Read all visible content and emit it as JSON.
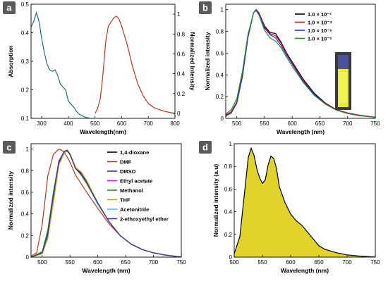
{
  "chart_data": [
    {
      "panel_label": "a",
      "type": "line",
      "xlabel": "Wavelength(nm)",
      "ylabel": "Absorption",
      "ylabel_right": "Normalized Intensity",
      "xlim": [
        260,
        800
      ],
      "ylim": [
        0.1,
        0.5
      ],
      "ylim_right": [
        -0.05,
        1.1
      ],
      "xticks": [
        300,
        400,
        500,
        600,
        700,
        800
      ],
      "yticks": [
        0.1,
        0.2,
        0.3,
        0.4,
        0.5
      ],
      "yticks_right": [
        0.0,
        0.2,
        0.4,
        0.6,
        0.8,
        1.0
      ],
      "series": [
        {
          "axis": "left",
          "color": "#1f6e86",
          "x": [
            260,
            270,
            280,
            290,
            300,
            310,
            320,
            330,
            340,
            350,
            360,
            370,
            380,
            390,
            400,
            410,
            420,
            430,
            440,
            450,
            460,
            470,
            480
          ],
          "y": [
            0.42,
            0.44,
            0.47,
            0.44,
            0.38,
            0.33,
            0.29,
            0.27,
            0.265,
            0.27,
            0.25,
            0.22,
            0.21,
            0.2,
            0.16,
            0.15,
            0.14,
            0.125,
            0.115,
            0.11,
            0.105,
            0.103,
            0.1
          ]
        },
        {
          "axis": "right",
          "color": "#b23a23",
          "x": [
            500,
            510,
            520,
            530,
            540,
            550,
            560,
            570,
            580,
            590,
            600,
            620,
            640,
            660,
            680,
            700,
            720,
            740,
            760,
            780,
            800
          ],
          "y": [
            0.0,
            0.05,
            0.15,
            0.4,
            0.72,
            0.88,
            0.92,
            0.96,
            0.98,
            0.95,
            0.88,
            0.7,
            0.48,
            0.3,
            0.18,
            0.1,
            0.06,
            0.04,
            0.02,
            0.01,
            0.0
          ]
        }
      ]
    },
    {
      "panel_label": "b",
      "type": "line",
      "xlabel": "Wavelength (nm)",
      "ylabel": "Normalized intensity",
      "xlim": [
        480,
        750
      ],
      "ylim": [
        0,
        1.05
      ],
      "xticks": [
        500,
        550,
        600,
        650,
        700,
        750
      ],
      "yticks": [
        0.0,
        0.2,
        0.4,
        0.6,
        0.8,
        1.0
      ],
      "legend": "top-right",
      "series": [
        {
          "name": "1.0 × 10⁻³",
          "color": "#000000",
          "x": [
            480,
            490,
            500,
            510,
            520,
            530,
            535,
            540,
            550,
            560,
            570,
            580,
            590,
            600,
            620,
            640,
            660,
            680,
            700,
            720,
            750
          ],
          "y": [
            0.03,
            0.06,
            0.15,
            0.4,
            0.75,
            0.97,
            1.0,
            0.97,
            0.85,
            0.79,
            0.78,
            0.7,
            0.6,
            0.52,
            0.36,
            0.23,
            0.14,
            0.08,
            0.05,
            0.03,
            0.01
          ]
        },
        {
          "name": "1.0 × 10⁻⁴",
          "color": "#e0001b",
          "x": [
            480,
            490,
            500,
            510,
            520,
            530,
            535,
            540,
            550,
            560,
            570,
            580,
            590,
            600,
            620,
            640,
            660,
            680,
            700,
            720,
            750
          ],
          "y": [
            0.03,
            0.06,
            0.15,
            0.4,
            0.75,
            0.97,
            1.0,
            0.97,
            0.84,
            0.78,
            0.76,
            0.69,
            0.59,
            0.51,
            0.35,
            0.22,
            0.135,
            0.08,
            0.05,
            0.03,
            0.01
          ]
        },
        {
          "name": "1.0 × 10⁻⁵",
          "color": "#1d2fd0",
          "x": [
            480,
            490,
            500,
            510,
            520,
            530,
            535,
            540,
            550,
            560,
            570,
            580,
            590,
            600,
            620,
            640,
            660,
            680,
            700,
            720,
            750
          ],
          "y": [
            0.02,
            0.05,
            0.14,
            0.38,
            0.74,
            0.97,
            1.0,
            0.96,
            0.83,
            0.77,
            0.74,
            0.67,
            0.58,
            0.5,
            0.34,
            0.22,
            0.13,
            0.075,
            0.045,
            0.025,
            0.01
          ]
        },
        {
          "name": "1.0 × 10⁻⁶",
          "color": "#2a8a2a",
          "x": [
            480,
            490,
            500,
            510,
            520,
            530,
            535,
            540,
            550,
            560,
            570,
            580,
            590,
            600,
            620,
            640,
            660,
            680,
            700,
            720,
            750
          ],
          "y": [
            0.04,
            0.08,
            0.18,
            0.43,
            0.77,
            0.97,
            0.99,
            0.95,
            0.81,
            0.74,
            0.71,
            0.65,
            0.56,
            0.48,
            0.33,
            0.21,
            0.13,
            0.075,
            0.045,
            0.025,
            0.01
          ]
        }
      ]
    },
    {
      "panel_label": "c",
      "type": "line",
      "xlabel": "Wavelength (nm)",
      "ylabel": "Normalized intensity",
      "xlim": [
        480,
        750
      ],
      "ylim": [
        0,
        1.05
      ],
      "xticks": [
        500,
        550,
        600,
        650,
        700,
        750
      ],
      "yticks": [
        0.0,
        0.2,
        0.4,
        0.6,
        0.8,
        1.0
      ],
      "legend": "top-right",
      "series": [
        {
          "name": "1,4-dioxane",
          "color": "#000000",
          "x": [
            480,
            500,
            510,
            520,
            530,
            540,
            545,
            550,
            560,
            570,
            580,
            600,
            620,
            640,
            660,
            680,
            700,
            720,
            750
          ],
          "y": [
            0.0,
            0.04,
            0.2,
            0.55,
            0.88,
            0.98,
            0.99,
            0.95,
            0.82,
            0.78,
            0.7,
            0.5,
            0.33,
            0.2,
            0.12,
            0.07,
            0.04,
            0.02,
            0.0
          ]
        },
        {
          "name": "DMF",
          "color": "#b23a23",
          "x": [
            480,
            490,
            500,
            510,
            520,
            530,
            535,
            540,
            550,
            560,
            570,
            580,
            600,
            620,
            640,
            660,
            680,
            700,
            720,
            750
          ],
          "y": [
            0.01,
            0.04,
            0.3,
            0.75,
            0.95,
            1.0,
            0.99,
            0.97,
            0.88,
            0.76,
            0.68,
            0.6,
            0.45,
            0.31,
            0.2,
            0.12,
            0.07,
            0.04,
            0.02,
            0.0
          ]
        },
        {
          "name": "DMSO",
          "color": "#1d2fd0",
          "x": [
            480,
            500,
            510,
            520,
            530,
            540,
            545,
            550,
            560,
            570,
            580,
            600,
            620,
            640,
            660,
            680,
            700,
            720,
            750
          ],
          "y": [
            0.0,
            0.04,
            0.22,
            0.58,
            0.89,
            0.98,
            0.99,
            0.96,
            0.83,
            0.78,
            0.7,
            0.5,
            0.33,
            0.2,
            0.12,
            0.07,
            0.04,
            0.02,
            0.0
          ]
        },
        {
          "name": "Ethyl acetate",
          "color": "#c01fc0",
          "x": [
            480,
            500,
            510,
            520,
            530,
            540,
            545,
            550,
            560,
            570,
            580,
            600,
            620,
            640,
            660,
            680,
            700,
            720,
            750
          ],
          "y": [
            0.0,
            0.04,
            0.18,
            0.52,
            0.86,
            0.98,
            0.99,
            0.95,
            0.82,
            0.77,
            0.69,
            0.49,
            0.33,
            0.2,
            0.12,
            0.07,
            0.04,
            0.02,
            0.0
          ]
        },
        {
          "name": "Methanol",
          "color": "#2a8a2a",
          "x": [
            480,
            500,
            510,
            520,
            530,
            540,
            545,
            550,
            560,
            570,
            580,
            600,
            620,
            640,
            660,
            680,
            700,
            720,
            750
          ],
          "y": [
            0.0,
            0.05,
            0.25,
            0.6,
            0.88,
            0.97,
            0.98,
            0.95,
            0.82,
            0.76,
            0.68,
            0.49,
            0.33,
            0.2,
            0.12,
            0.07,
            0.04,
            0.02,
            0.0
          ]
        },
        {
          "name": "THF",
          "color": "#c8a800",
          "x": [
            480,
            500,
            510,
            520,
            530,
            540,
            545,
            550,
            560,
            570,
            580,
            600,
            620,
            640,
            660,
            680,
            700,
            720,
            750
          ],
          "y": [
            0.0,
            0.03,
            0.17,
            0.5,
            0.85,
            0.97,
            0.99,
            0.96,
            0.83,
            0.79,
            0.71,
            0.5,
            0.33,
            0.2,
            0.12,
            0.07,
            0.04,
            0.02,
            0.0
          ]
        },
        {
          "name": "Acetonitrile",
          "color": "#40c0f0",
          "x": [
            480,
            500,
            510,
            520,
            530,
            540,
            545,
            550,
            560,
            570,
            580,
            600,
            620,
            640,
            660,
            680,
            700,
            720,
            750
          ],
          "y": [
            0.0,
            0.04,
            0.2,
            0.56,
            0.88,
            0.98,
            0.99,
            0.95,
            0.82,
            0.77,
            0.69,
            0.49,
            0.33,
            0.2,
            0.12,
            0.07,
            0.04,
            0.02,
            0.0
          ]
        },
        {
          "name": "2-ethoxyethyl ether",
          "color": "#4b2a8a",
          "x": [
            480,
            500,
            510,
            520,
            530,
            540,
            545,
            550,
            560,
            570,
            580,
            600,
            620,
            640,
            660,
            680,
            700,
            720,
            750
          ],
          "y": [
            0.0,
            0.04,
            0.21,
            0.57,
            0.88,
            0.98,
            0.99,
            0.95,
            0.82,
            0.77,
            0.69,
            0.5,
            0.33,
            0.2,
            0.12,
            0.07,
            0.04,
            0.02,
            0.0
          ]
        }
      ]
    },
    {
      "panel_label": "d",
      "type": "area",
      "xlabel": "Wavelength (nm)",
      "ylabel": "Normalized intensity (a.u)",
      "xlim": [
        500,
        750
      ],
      "ylim": [
        0,
        1.0
      ],
      "xticks": [
        500,
        550,
        600,
        650,
        700,
        750
      ],
      "yticks": [
        0.0,
        0.2,
        0.4,
        0.6,
        0.8,
        1.0
      ],
      "fill_color": "#e2d32a",
      "series": [
        {
          "color": "#000000",
          "x": [
            500,
            510,
            520,
            525,
            530,
            535,
            540,
            545,
            550,
            555,
            560,
            565,
            570,
            575,
            580,
            590,
            600,
            610,
            620,
            630,
            640,
            650,
            660,
            680,
            700,
            720,
            750
          ],
          "y": [
            0.03,
            0.18,
            0.65,
            0.88,
            0.96,
            0.9,
            0.78,
            0.7,
            0.65,
            0.68,
            0.81,
            0.89,
            0.87,
            0.78,
            0.62,
            0.48,
            0.38,
            0.32,
            0.28,
            0.22,
            0.16,
            0.1,
            0.07,
            0.04,
            0.02,
            0.01,
            0.0
          ]
        }
      ]
    }
  ]
}
